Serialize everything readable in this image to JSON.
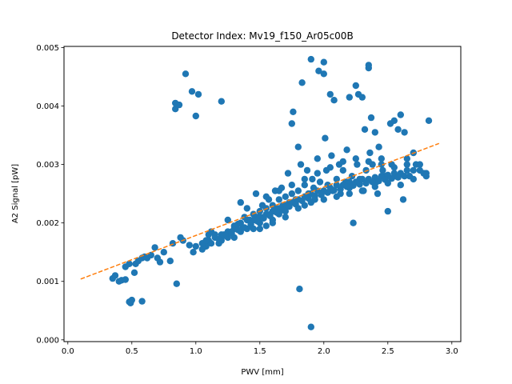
{
  "chart_data": {
    "type": "scatter",
    "title": "Detector Index: Mv19_f150_Ar05c00B",
    "xlabel": "PWV [mm]",
    "ylabel": "A2 Signal [pW]",
    "xlim": [
      -0.03,
      3.07
    ],
    "ylim": [
      -3e-05,
      0.00502
    ],
    "x_ticks": [
      0.0,
      0.5,
      1.0,
      1.5,
      2.0,
      2.5,
      3.0
    ],
    "x_tick_labels": [
      "0.0",
      "0.5",
      "1.0",
      "1.5",
      "2.0",
      "2.5",
      "3.0"
    ],
    "y_ticks": [
      0.0,
      0.001,
      0.002,
      0.003,
      0.004,
      0.005
    ],
    "y_tick_labels": [
      "0.000",
      "0.001",
      "0.002",
      "0.003",
      "0.004",
      "0.005"
    ],
    "marker_color": "#1f77b4",
    "fit_color": "#ff7f0e",
    "fit_line": {
      "x": [
        0.1,
        2.9
      ],
      "y": [
        0.00104,
        0.00336
      ],
      "style": "dashed"
    },
    "series": [
      {
        "name": "A2 Signal",
        "points": [
          [
            0.35,
            0.00105
          ],
          [
            0.37,
            0.0011
          ],
          [
            0.4,
            0.001
          ],
          [
            0.42,
            0.00102
          ],
          [
            0.45,
            0.00103
          ],
          [
            0.45,
            0.00125
          ],
          [
            0.48,
            0.0013
          ],
          [
            0.48,
            0.00065
          ],
          [
            0.49,
            0.00063
          ],
          [
            0.5,
            0.00068
          ],
          [
            0.52,
            0.00115
          ],
          [
            0.53,
            0.0013
          ],
          [
            0.55,
            0.00135
          ],
          [
            0.58,
            0.0014
          ],
          [
            0.58,
            0.00066
          ],
          [
            0.6,
            0.00142
          ],
          [
            0.62,
            0.0014
          ],
          [
            0.65,
            0.00145
          ],
          [
            0.68,
            0.00158
          ],
          [
            0.7,
            0.0014
          ],
          [
            0.72,
            0.00133
          ],
          [
            0.75,
            0.0015
          ],
          [
            0.8,
            0.00135
          ],
          [
            0.82,
            0.00165
          ],
          [
            0.84,
            0.00395
          ],
          [
            0.84,
            0.00405
          ],
          [
            0.85,
            0.00096
          ],
          [
            0.87,
            0.00402
          ],
          [
            0.88,
            0.00175
          ],
          [
            0.9,
            0.0017
          ],
          [
            0.92,
            0.00455
          ],
          [
            0.95,
            0.00162
          ],
          [
            0.97,
            0.00425
          ],
          [
            0.98,
            0.0015
          ],
          [
            1.0,
            0.00383
          ],
          [
            1.02,
            0.0042
          ],
          [
            1.05,
            0.00155
          ],
          [
            1.08,
            0.0016
          ],
          [
            1.1,
            0.0018
          ],
          [
            1.12,
            0.00185
          ],
          [
            1.15,
            0.00175
          ],
          [
            1.18,
            0.00165
          ],
          [
            1.2,
            0.00408
          ],
          [
            1.2,
            0.0017
          ],
          [
            1.22,
            0.0018
          ],
          [
            1.25,
            0.00175
          ],
          [
            1.25,
            0.00205
          ],
          [
            1.28,
            0.00185
          ],
          [
            1.3,
            0.0019
          ],
          [
            1.3,
            0.00175
          ],
          [
            1.33,
            0.00198
          ],
          [
            1.35,
            0.00185
          ],
          [
            1.35,
            0.00235
          ],
          [
            1.37,
            0.00192
          ],
          [
            1.38,
            0.0021
          ],
          [
            1.4,
            0.0019
          ],
          [
            1.4,
            0.00225
          ],
          [
            1.42,
            0.00205
          ],
          [
            1.43,
            0.00195
          ],
          [
            1.45,
            0.00215
          ],
          [
            1.45,
            0.0019
          ],
          [
            1.47,
            0.0025
          ],
          [
            1.48,
            0.0021
          ],
          [
            1.5,
            0.0022
          ],
          [
            1.5,
            0.002
          ],
          [
            1.52,
            0.0023
          ],
          [
            1.53,
            0.0021
          ],
          [
            1.55,
            0.00225
          ],
          [
            1.55,
            0.00195
          ],
          [
            1.57,
            0.0024
          ],
          [
            1.58,
            0.00215
          ],
          [
            1.6,
            0.0023
          ],
          [
            1.6,
            0.00205
          ],
          [
            1.62,
            0.00255
          ],
          [
            1.63,
            0.00225
          ],
          [
            1.65,
            0.0024
          ],
          [
            1.65,
            0.00215
          ],
          [
            1.67,
            0.0026
          ],
          [
            1.68,
            0.0023
          ],
          [
            1.7,
            0.00245
          ],
          [
            1.7,
            0.0022
          ],
          [
            1.72,
            0.00285
          ],
          [
            1.73,
            0.00235
          ],
          [
            1.75,
            0.0025
          ],
          [
            1.75,
            0.0037
          ],
          [
            1.76,
            0.0039
          ],
          [
            1.78,
            0.0024
          ],
          [
            1.8,
            0.0033
          ],
          [
            1.8,
            0.00255
          ],
          [
            1.81,
            0.00087
          ],
          [
            1.82,
            0.003
          ],
          [
            1.83,
            0.0044
          ],
          [
            1.85,
            0.00265
          ],
          [
            1.85,
            0.0023
          ],
          [
            1.87,
            0.0029
          ],
          [
            1.88,
            0.0025
          ],
          [
            1.9,
            0.0048
          ],
          [
            1.9,
            0.00022
          ],
          [
            1.91,
            0.00275
          ],
          [
            1.92,
            0.0026
          ],
          [
            1.93,
            0.0024
          ],
          [
            1.95,
            0.0031
          ],
          [
            1.96,
            0.0046
          ],
          [
            1.97,
            0.0027
          ],
          [
            1.98,
            0.00248
          ],
          [
            2.0,
            0.00475
          ],
          [
            2.0,
            0.00455
          ],
          [
            2.01,
            0.00345
          ],
          [
            2.02,
            0.0029
          ],
          [
            2.03,
            0.00265
          ],
          [
            2.05,
            0.0042
          ],
          [
            2.06,
            0.00315
          ],
          [
            2.07,
            0.00255
          ],
          [
            2.08,
            0.0041
          ],
          [
            2.1,
            0.00275
          ],
          [
            2.12,
            0.003
          ],
          [
            2.13,
            0.0025
          ],
          [
            2.15,
            0.0029
          ],
          [
            2.17,
            0.0027
          ],
          [
            2.18,
            0.00325
          ],
          [
            2.2,
            0.00415
          ],
          [
            2.2,
            0.0026
          ],
          [
            2.22,
            0.0028
          ],
          [
            2.23,
            0.002
          ],
          [
            2.25,
            0.00435
          ],
          [
            2.26,
            0.003
          ],
          [
            2.27,
            0.0042
          ],
          [
            2.28,
            0.00275
          ],
          [
            2.3,
            0.00415
          ],
          [
            2.31,
            0.00255
          ],
          [
            2.32,
            0.0036
          ],
          [
            2.33,
            0.0029
          ],
          [
            2.35,
            0.00465
          ],
          [
            2.35,
            0.0047
          ],
          [
            2.36,
            0.0032
          ],
          [
            2.37,
            0.0038
          ],
          [
            2.38,
            0.003
          ],
          [
            2.4,
            0.00355
          ],
          [
            2.41,
            0.0027
          ],
          [
            2.42,
            0.0025
          ],
          [
            2.43,
            0.0033
          ],
          [
            2.45,
            0.0031
          ],
          [
            2.46,
            0.0029
          ],
          [
            2.48,
            0.0028
          ],
          [
            2.5,
            0.0022
          ],
          [
            2.52,
            0.0037
          ],
          [
            2.53,
            0.003
          ],
          [
            2.55,
            0.00375
          ],
          [
            2.56,
            0.0028
          ],
          [
            2.58,
            0.0036
          ],
          [
            2.6,
            0.00385
          ],
          [
            2.62,
            0.0024
          ],
          [
            2.63,
            0.00355
          ],
          [
            2.65,
            0.003
          ],
          [
            2.67,
            0.0028
          ],
          [
            2.7,
            0.0032
          ],
          [
            2.72,
            0.003
          ],
          [
            2.75,
            0.0029
          ],
          [
            2.78,
            0.00285
          ],
          [
            2.8,
            0.0028
          ],
          [
            2.82,
            0.00375
          ],
          [
            1.1,
            0.0017
          ],
          [
            1.15,
            0.0018
          ],
          [
            1.2,
            0.0018
          ],
          [
            1.25,
            0.00185
          ],
          [
            1.3,
            0.00195
          ],
          [
            1.35,
            0.002
          ],
          [
            1.4,
            0.00205
          ],
          [
            1.45,
            0.00205
          ],
          [
            1.5,
            0.0021
          ],
          [
            1.55,
            0.00215
          ],
          [
            1.6,
            0.0022
          ],
          [
            1.65,
            0.00225
          ],
          [
            1.7,
            0.0023
          ],
          [
            1.75,
            0.00235
          ],
          [
            1.8,
            0.0024
          ],
          [
            1.85,
            0.00245
          ],
          [
            1.9,
            0.0025
          ],
          [
            1.95,
            0.00255
          ],
          [
            2.0,
            0.00255
          ],
          [
            2.05,
            0.0026
          ],
          [
            2.1,
            0.00265
          ],
          [
            2.15,
            0.00265
          ],
          [
            2.2,
            0.0027
          ],
          [
            2.25,
            0.0027
          ],
          [
            2.3,
            0.00275
          ],
          [
            2.35,
            0.00275
          ],
          [
            2.4,
            0.00278
          ],
          [
            2.45,
            0.0028
          ],
          [
            2.5,
            0.00282
          ],
          [
            2.55,
            0.00285
          ],
          [
            2.6,
            0.00285
          ],
          [
            2.65,
            0.0029
          ],
          [
            2.7,
            0.0029
          ],
          [
            1.12,
            0.00165
          ],
          [
            1.18,
            0.00172
          ],
          [
            1.23,
            0.00178
          ],
          [
            1.28,
            0.00182
          ],
          [
            1.33,
            0.00188
          ],
          [
            1.38,
            0.00192
          ],
          [
            1.43,
            0.00198
          ],
          [
            1.48,
            0.00203
          ],
          [
            1.53,
            0.00208
          ],
          [
            1.58,
            0.00212
          ],
          [
            1.63,
            0.00218
          ],
          [
            1.68,
            0.00222
          ],
          [
            1.73,
            0.00228
          ],
          [
            1.78,
            0.00232
          ],
          [
            1.83,
            0.00238
          ],
          [
            1.88,
            0.00242
          ],
          [
            1.93,
            0.00246
          ],
          [
            1.98,
            0.0025
          ],
          [
            2.03,
            0.00252
          ],
          [
            2.08,
            0.00256
          ],
          [
            2.13,
            0.00258
          ],
          [
            2.18,
            0.00262
          ],
          [
            2.23,
            0.00264
          ],
          [
            2.28,
            0.00266
          ],
          [
            2.33,
            0.00268
          ],
          [
            2.38,
            0.0027
          ],
          [
            2.43,
            0.00272
          ],
          [
            2.48,
            0.00274
          ],
          [
            2.53,
            0.00276
          ],
          [
            2.58,
            0.00278
          ],
          [
            2.63,
            0.0028
          ],
          [
            1.0,
            0.0016
          ],
          [
            1.05,
            0.00165
          ],
          [
            1.08,
            0.0017
          ],
          [
            1.5,
            0.0019
          ],
          [
            1.6,
            0.002
          ],
          [
            1.7,
            0.0021
          ],
          [
            1.8,
            0.00225
          ],
          [
            1.9,
            0.00235
          ],
          [
            2.0,
            0.0024
          ],
          [
            2.1,
            0.00245
          ],
          [
            2.2,
            0.0025
          ],
          [
            2.3,
            0.00255
          ],
          [
            2.4,
            0.00262
          ],
          [
            2.5,
            0.00268
          ],
          [
            1.95,
            0.00285
          ],
          [
            2.05,
            0.00295
          ],
          [
            2.15,
            0.00305
          ],
          [
            2.25,
            0.0031
          ],
          [
            2.35,
            0.00305
          ],
          [
            2.45,
            0.003
          ],
          [
            2.55,
            0.00295
          ],
          [
            2.65,
            0.0031
          ],
          [
            2.75,
            0.003
          ],
          [
            1.85,
            0.00275
          ],
          [
            1.75,
            0.00265
          ],
          [
            1.65,
            0.00255
          ],
          [
            1.55,
            0.00245
          ],
          [
            2.6,
            0.00265
          ],
          [
            2.7,
            0.00275
          ],
          [
            2.8,
            0.00285
          ]
        ]
      }
    ]
  }
}
